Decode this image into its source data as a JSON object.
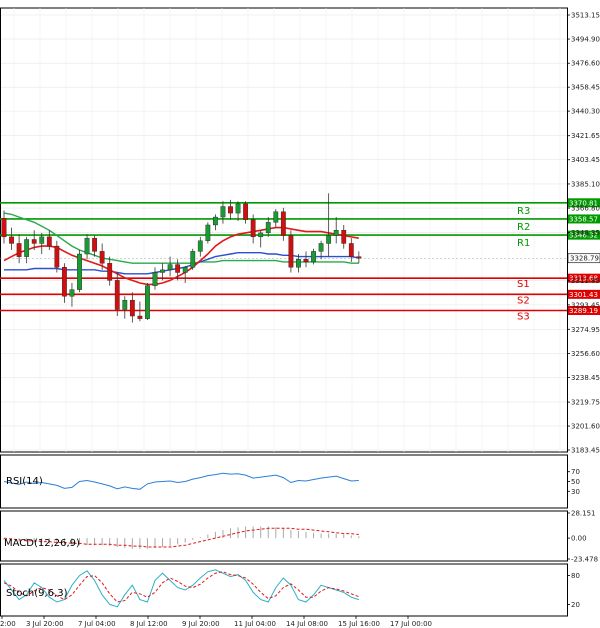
{
  "chart_data": {
    "type": "candlestick",
    "price_axis": {
      "ticks": [
        "3513.15",
        "3494.90",
        "3476.60",
        "3458.45",
        "3440.30",
        "3421.65",
        "3403.45",
        "3385.10",
        "3366.80",
        "3348.35",
        "3311.85",
        "3293.45",
        "3274.95",
        "3256.60",
        "3238.45",
        "3219.75",
        "3201.60",
        "3183.45"
      ],
      "range": [
        3183.45,
        3513.15
      ],
      "current_price": "3328.79"
    },
    "levels": [
      {
        "name": "R3",
        "value": "3370.81",
        "color": "#009900"
      },
      {
        "name": "R2",
        "value": "3358.57",
        "color": "#009900"
      },
      {
        "name": "R1",
        "value": "3346.32",
        "color": "#009900"
      },
      {
        "name": "S1",
        "value": "3313.68",
        "color": "#e00000"
      },
      {
        "name": "S2",
        "value": "3301.43",
        "color": "#e00000"
      },
      {
        "name": "S3",
        "value": "3289.19",
        "color": "#e00000"
      }
    ],
    "x_ticks": [
      "2:00",
      "3 Jul 20:00",
      "7 Jul 04:00",
      "8 Jul 12:00",
      "9 Jul 20:00",
      "11 Jul 04:00",
      "14 Jul 08:00",
      "15 Jul 16:00",
      "17 Jul 00:00"
    ],
    "candles": [
      [
        3359,
        3365,
        3340,
        3345
      ],
      [
        3345,
        3352,
        3335,
        3340
      ],
      [
        3340,
        3347,
        3325,
        3330
      ],
      [
        3330,
        3345,
        3325,
        3343
      ],
      [
        3343,
        3350,
        3335,
        3340
      ],
      [
        3340,
        3348,
        3332,
        3345
      ],
      [
        3345,
        3350,
        3335,
        3338
      ],
      [
        3338,
        3342,
        3318,
        3322
      ],
      [
        3322,
        3325,
        3295,
        3300
      ],
      [
        3300,
        3310,
        3292,
        3305
      ],
      [
        3305,
        3335,
        3303,
        3332
      ],
      [
        3332,
        3347,
        3328,
        3344
      ],
      [
        3344,
        3346,
        3330,
        3334
      ],
      [
        3334,
        3340,
        3320,
        3325
      ],
      [
        3325,
        3330,
        3308,
        3312
      ],
      [
        3312,
        3318,
        3285,
        3290
      ],
      [
        3290,
        3300,
        3283,
        3297
      ],
      [
        3297,
        3303,
        3280,
        3285
      ],
      [
        3285,
        3296,
        3281,
        3283
      ],
      [
        3283,
        3310,
        3282,
        3308
      ],
      [
        3308,
        3322,
        3305,
        3318
      ],
      [
        3318,
        3325,
        3312,
        3320
      ],
      [
        3320,
        3330,
        3315,
        3324
      ],
      [
        3324,
        3328,
        3312,
        3318
      ],
      [
        3318,
        3323,
        3310,
        3322
      ],
      [
        3322,
        3336,
        3320,
        3334
      ],
      [
        3334,
        3345,
        3330,
        3342
      ],
      [
        3342,
        3356,
        3340,
        3354
      ],
      [
        3354,
        3362,
        3350,
        3360
      ],
      [
        3360,
        3372,
        3355,
        3368
      ],
      [
        3368,
        3373,
        3358,
        3363
      ],
      [
        3363,
        3372,
        3357,
        3370
      ],
      [
        3370,
        3372,
        3355,
        3358
      ],
      [
        3358,
        3362,
        3340,
        3345
      ],
      [
        3345,
        3350,
        3337,
        3348
      ],
      [
        3348,
        3360,
        3345,
        3356
      ],
      [
        3356,
        3366,
        3352,
        3364
      ],
      [
        3364,
        3367,
        3342,
        3346
      ],
      [
        3346,
        3350,
        3318,
        3322
      ],
      [
        3322,
        3332,
        3318,
        3328
      ],
      [
        3328,
        3334,
        3322,
        3326
      ],
      [
        3326,
        3336,
        3324,
        3334
      ],
      [
        3334,
        3342,
        3328,
        3340
      ],
      [
        3340,
        3378,
        3330,
        3346
      ],
      [
        3346,
        3360,
        3340,
        3350
      ],
      [
        3350,
        3354,
        3336,
        3340
      ],
      [
        3340,
        3344,
        3326,
        3330
      ],
      [
        3330,
        3334,
        3325,
        3328.79
      ]
    ],
    "ma_red": [
      3327,
      3330,
      3333,
      3335,
      3337,
      3338,
      3338,
      3337,
      3334,
      3331,
      3329,
      3327,
      3325,
      3323,
      3320,
      3317,
      3314,
      3312,
      3310,
      3309,
      3309,
      3310,
      3312,
      3315,
      3318,
      3322,
      3327,
      3332,
      3338,
      3342,
      3345,
      3347,
      3348,
      3349,
      3350,
      3351,
      3352,
      3352,
      3351,
      3350,
      3349,
      3349,
      3349,
      3348,
      3347,
      3346,
      3345,
      3344
    ],
    "ma_blue": [
      3320,
      3320,
      3320,
      3320,
      3321,
      3321,
      3321,
      3321,
      3320,
      3320,
      3320,
      3320,
      3320,
      3319,
      3319,
      3318,
      3317,
      3317,
      3317,
      3317,
      3318,
      3319,
      3320,
      3321,
      3322,
      3324,
      3326,
      3328,
      3330,
      3331,
      3332,
      3333,
      3333,
      3333,
      3333,
      3332,
      3332,
      3331,
      3331,
      3330,
      3330,
      3330,
      3330,
      3330,
      3330,
      3330,
      3330,
      3329
    ],
    "ma_green": [
      3363,
      3362,
      3360,
      3358,
      3356,
      3353,
      3350,
      3346,
      3342,
      3338,
      3335,
      3333,
      3331,
      3329,
      3328,
      3327,
      3326,
      3325,
      3325,
      3325,
      3325,
      3325,
      3325,
      3325,
      3325,
      3325,
      3326,
      3326,
      3326,
      3327,
      3327,
      3327,
      3327,
      3327,
      3327,
      3327,
      3327,
      3326,
      3326,
      3326,
      3326,
      3326,
      3326,
      3326,
      3326,
      3326,
      3325,
      3325
    ],
    "rsi": {
      "label": "RSI(14)",
      "ticks": [
        "70",
        "50",
        "30"
      ],
      "range": [
        0,
        100
      ],
      "values": [
        50,
        47,
        44,
        49,
        46,
        48,
        45,
        42,
        36,
        38,
        50,
        52,
        49,
        45,
        41,
        35,
        39,
        36,
        34,
        45,
        49,
        50,
        51,
        48,
        50,
        55,
        58,
        62,
        64,
        67,
        65,
        66,
        63,
        57,
        59,
        61,
        63,
        58,
        48,
        52,
        51,
        54,
        57,
        59,
        61,
        56,
        51,
        52
      ]
    },
    "macd": {
      "label": "MACD(12,26,9)",
      "ticks": [
        "28.151",
        "0.00",
        "-23.478"
      ],
      "range": [
        -23.478,
        28.151
      ],
      "hist": [
        -2,
        -3,
        -4,
        -4,
        -5,
        -5,
        -6,
        -6,
        -7,
        -8,
        -8,
        -8,
        -8,
        -8,
        -9,
        -10,
        -11,
        -12,
        -12,
        -12,
        -11,
        -10,
        -9,
        -7,
        -5,
        -2,
        1,
        4,
        7,
        9,
        11,
        12,
        13,
        13,
        13,
        13,
        12,
        11,
        9,
        8,
        7,
        6,
        5,
        5,
        5,
        4,
        3,
        2
      ],
      "signal": [
        0,
        -1,
        -2,
        -3,
        -3,
        -4,
        -4,
        -5,
        -5,
        -6,
        -6,
        -7,
        -7,
        -7,
        -7,
        -8,
        -8,
        -9,
        -9,
        -10,
        -10,
        -10,
        -10,
        -9,
        -8,
        -6,
        -4,
        -2,
        0,
        2,
        4,
        6,
        8,
        9,
        10,
        11,
        11,
        11,
        11,
        10,
        10,
        9,
        8,
        7,
        6,
        5,
        5,
        4
      ]
    },
    "stoch": {
      "label": "Stoch(9,6,3)",
      "ticks": [
        "80",
        "20"
      ],
      "range": [
        0,
        100
      ],
      "k": [
        70,
        50,
        30,
        40,
        65,
        55,
        35,
        25,
        30,
        60,
        80,
        90,
        70,
        40,
        20,
        15,
        40,
        60,
        30,
        25,
        70,
        85,
        70,
        55,
        50,
        60,
        75,
        88,
        92,
        85,
        78,
        82,
        70,
        45,
        30,
        25,
        55,
        75,
        60,
        30,
        25,
        40,
        60,
        55,
        50,
        45,
        35,
        30
      ],
      "d": [
        65,
        58,
        45,
        38,
        48,
        55,
        50,
        38,
        30,
        40,
        60,
        78,
        80,
        65,
        42,
        25,
        28,
        45,
        42,
        35,
        45,
        65,
        75,
        68,
        58,
        55,
        62,
        75,
        85,
        88,
        82,
        80,
        75,
        62,
        45,
        32,
        38,
        55,
        63,
        50,
        35,
        35,
        48,
        55,
        52,
        48,
        42,
        36
      ]
    }
  }
}
